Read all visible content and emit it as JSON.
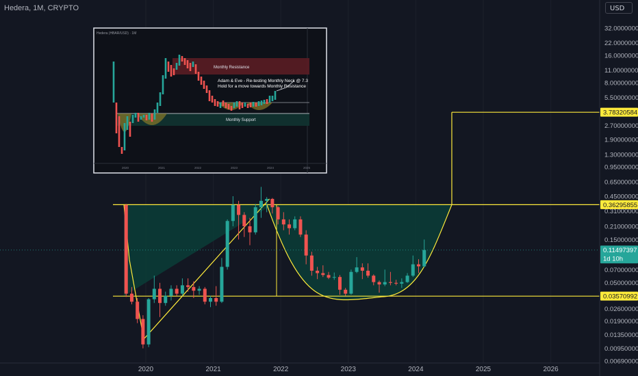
{
  "header": {
    "title": "Hedera, 1M, CRYPTO",
    "currency": "USD"
  },
  "inset": {
    "title": "Hedera (HBAR/USD) · 1M",
    "labels": {
      "resistance": "Monthly Resistance",
      "support": "Monthly Support",
      "note_line1": "Adam & Eve - Re-testing Monthly Neck @ 7.3",
      "note_line2": "Hold for a move towards Monthly Resistance"
    },
    "years": [
      "2020",
      "2021",
      "2022",
      "2023",
      "2024",
      "2025"
    ]
  },
  "chart_data": {
    "type": "candlestick",
    "title": "Hedera, 1M, CRYPTO",
    "y_scale": "log",
    "ylim": [
      0.0058,
      42
    ],
    "y_ticks": [
      "32.0000000",
      "22.0000000",
      "16.0000000",
      "11.0000000",
      "8.00000000",
      "5.50000000",
      "3.78320584",
      "2.70000000",
      "1.90000000",
      "1.30000000",
      "0.95000000",
      "0.65000000",
      "0.45000000",
      "0.36295855",
      "0.31000000",
      "0.21000000",
      "0.15000000",
      "0.11497397",
      "0.07000000",
      "0.05000000",
      "0.03570992",
      "0.02600000",
      "0.01900000",
      "0.01350000",
      "0.00950000",
      "0.00690000"
    ],
    "x_labels": [
      "2020",
      "2021",
      "2022",
      "2023",
      "2024",
      "2025",
      "2026"
    ],
    "candles": [
      {
        "d": "2019-09",
        "o": 0.36,
        "h": 0.37,
        "l": 0.035,
        "c": 0.038
      },
      {
        "d": "2019-10",
        "o": 0.038,
        "h": 0.045,
        "l": 0.029,
        "c": 0.031
      },
      {
        "d": "2019-11",
        "o": 0.031,
        "h": 0.034,
        "l": 0.018,
        "c": 0.02
      },
      {
        "d": "2019-12",
        "o": 0.02,
        "h": 0.022,
        "l": 0.0095,
        "c": 0.0105
      },
      {
        "d": "2020-01",
        "o": 0.0105,
        "h": 0.034,
        "l": 0.0098,
        "c": 0.033
      },
      {
        "d": "2020-02",
        "o": 0.033,
        "h": 0.06,
        "l": 0.03,
        "c": 0.043
      },
      {
        "d": "2020-03",
        "o": 0.043,
        "h": 0.05,
        "l": 0.021,
        "c": 0.03
      },
      {
        "d": "2020-04",
        "o": 0.03,
        "h": 0.04,
        "l": 0.028,
        "c": 0.036
      },
      {
        "d": "2020-05",
        "o": 0.036,
        "h": 0.047,
        "l": 0.032,
        "c": 0.043
      },
      {
        "d": "2020-06",
        "o": 0.043,
        "h": 0.047,
        "l": 0.036,
        "c": 0.038
      },
      {
        "d": "2020-07",
        "o": 0.038,
        "h": 0.056,
        "l": 0.036,
        "c": 0.047
      },
      {
        "d": "2020-08",
        "o": 0.047,
        "h": 0.056,
        "l": 0.04,
        "c": 0.045
      },
      {
        "d": "2020-09",
        "o": 0.045,
        "h": 0.052,
        "l": 0.034,
        "c": 0.041
      },
      {
        "d": "2020-10",
        "o": 0.041,
        "h": 0.046,
        "l": 0.037,
        "c": 0.043
      },
      {
        "d": "2020-11",
        "o": 0.043,
        "h": 0.045,
        "l": 0.029,
        "c": 0.031
      },
      {
        "d": "2020-12",
        "o": 0.031,
        "h": 0.036,
        "l": 0.027,
        "c": 0.034
      },
      {
        "d": "2021-01",
        "o": 0.034,
        "h": 0.046,
        "l": 0.028,
        "c": 0.031
      },
      {
        "d": "2021-02",
        "o": 0.031,
        "h": 0.094,
        "l": 0.03,
        "c": 0.075
      },
      {
        "d": "2021-03",
        "o": 0.075,
        "h": 0.25,
        "l": 0.07,
        "c": 0.24
      },
      {
        "d": "2021-04",
        "o": 0.24,
        "h": 0.45,
        "l": 0.21,
        "c": 0.36
      },
      {
        "d": "2021-05",
        "o": 0.36,
        "h": 0.4,
        "l": 0.15,
        "c": 0.28
      },
      {
        "d": "2021-06",
        "o": 0.28,
        "h": 0.3,
        "l": 0.16,
        "c": 0.21
      },
      {
        "d": "2021-07",
        "o": 0.21,
        "h": 0.26,
        "l": 0.13,
        "c": 0.18
      },
      {
        "d": "2021-08",
        "o": 0.18,
        "h": 0.37,
        "l": 0.17,
        "c": 0.34
      },
      {
        "d": "2021-09",
        "o": 0.34,
        "h": 0.57,
        "l": 0.26,
        "c": 0.4
      },
      {
        "d": "2021-10",
        "o": 0.4,
        "h": 0.44,
        "l": 0.3,
        "c": 0.42
      },
      {
        "d": "2021-11",
        "o": 0.42,
        "h": 0.43,
        "l": 0.29,
        "c": 0.34
      },
      {
        "d": "2021-12",
        "o": 0.34,
        "h": 0.35,
        "l": 0.22,
        "c": 0.25
      },
      {
        "d": "2022-01",
        "o": 0.25,
        "h": 0.3,
        "l": 0.19,
        "c": 0.22
      },
      {
        "d": "2022-02",
        "o": 0.22,
        "h": 0.25,
        "l": 0.17,
        "c": 0.2
      },
      {
        "d": "2022-03",
        "o": 0.2,
        "h": 0.27,
        "l": 0.19,
        "c": 0.25
      },
      {
        "d": "2022-04",
        "o": 0.25,
        "h": 0.27,
        "l": 0.16,
        "c": 0.17
      },
      {
        "d": "2022-05",
        "o": 0.17,
        "h": 0.19,
        "l": 0.08,
        "c": 0.1
      },
      {
        "d": "2022-06",
        "o": 0.1,
        "h": 0.11,
        "l": 0.06,
        "c": 0.068
      },
      {
        "d": "2022-07",
        "o": 0.068,
        "h": 0.075,
        "l": 0.055,
        "c": 0.064
      },
      {
        "d": "2022-08",
        "o": 0.064,
        "h": 0.078,
        "l": 0.058,
        "c": 0.061
      },
      {
        "d": "2022-09",
        "o": 0.061,
        "h": 0.066,
        "l": 0.055,
        "c": 0.057
      },
      {
        "d": "2022-10",
        "o": 0.057,
        "h": 0.065,
        "l": 0.054,
        "c": 0.058
      },
      {
        "d": "2022-11",
        "o": 0.058,
        "h": 0.061,
        "l": 0.037,
        "c": 0.042
      },
      {
        "d": "2022-12",
        "o": 0.042,
        "h": 0.044,
        "l": 0.036,
        "c": 0.038
      },
      {
        "d": "2023-01",
        "o": 0.038,
        "h": 0.07,
        "l": 0.037,
        "c": 0.066
      },
      {
        "d": "2023-02",
        "o": 0.066,
        "h": 0.096,
        "l": 0.064,
        "c": 0.074
      },
      {
        "d": "2023-03",
        "o": 0.074,
        "h": 0.082,
        "l": 0.055,
        "c": 0.068
      },
      {
        "d": "2023-04",
        "o": 0.068,
        "h": 0.082,
        "l": 0.057,
        "c": 0.06
      },
      {
        "d": "2023-05",
        "o": 0.06,
        "h": 0.062,
        "l": 0.047,
        "c": 0.051
      },
      {
        "d": "2023-06",
        "o": 0.051,
        "h": 0.053,
        "l": 0.039,
        "c": 0.048
      },
      {
        "d": "2023-07",
        "o": 0.048,
        "h": 0.07,
        "l": 0.046,
        "c": 0.051
      },
      {
        "d": "2023-08",
        "o": 0.051,
        "h": 0.066,
        "l": 0.047,
        "c": 0.05
      },
      {
        "d": "2023-09",
        "o": 0.05,
        "h": 0.054,
        "l": 0.047,
        "c": 0.049
      },
      {
        "d": "2023-10",
        "o": 0.049,
        "h": 0.056,
        "l": 0.044,
        "c": 0.051
      },
      {
        "d": "2023-11",
        "o": 0.051,
        "h": 0.064,
        "l": 0.05,
        "c": 0.06
      },
      {
        "d": "2023-12",
        "o": 0.06,
        "h": 0.1,
        "l": 0.058,
        "c": 0.08
      },
      {
        "d": "2024-01",
        "o": 0.08,
        "h": 0.091,
        "l": 0.064,
        "c": 0.076
      },
      {
        "d": "2024-02",
        "o": 0.076,
        "h": 0.15,
        "l": 0.074,
        "c": 0.115
      }
    ],
    "levels": [
      {
        "label": "3.78320584",
        "value": 3.78320584
      },
      {
        "label": "0.36295855",
        "value": 0.36295855
      },
      {
        "label": "0.03570992",
        "value": 0.03570992
      }
    ],
    "current": {
      "price": "0.11497397",
      "value": 0.11497397,
      "countdown": "1d 10h"
    },
    "colors": {
      "up": "#26a69a",
      "down": "#ef5350",
      "drawing": "#ffeb3b",
      "fill": "#0b3b36",
      "background": "#131722"
    }
  }
}
